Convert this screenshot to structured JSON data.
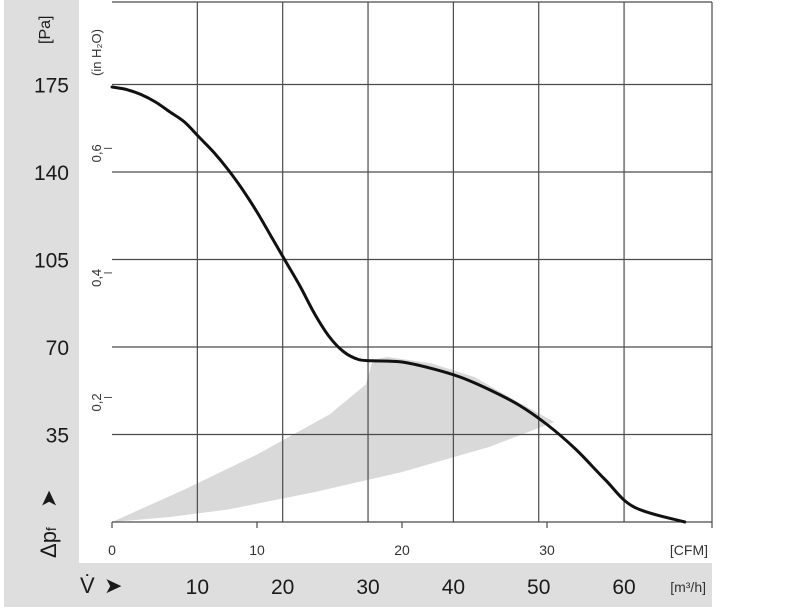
{
  "chart_data": {
    "type": "line",
    "pa_axis": {
      "unit": "[Pa]",
      "ticks": [
        35,
        70,
        105,
        140,
        175
      ],
      "range": [
        0,
        210
      ]
    },
    "inh2o_axis": {
      "unit": "(in H₂O)",
      "ticks": [
        "0,2",
        "0,4",
        "0,6"
      ],
      "tick_values": [
        0.2,
        0.4,
        0.6
      ]
    },
    "cfm_axis": {
      "unit": "[CFM]",
      "ticks": [
        0,
        10,
        20,
        30
      ],
      "range": [
        0,
        41
      ]
    },
    "m3h_axis": {
      "unit": "[m³/h]",
      "ticks": [
        10,
        20,
        30,
        40,
        50,
        60
      ]
    },
    "symbols": {
      "pressure": "Δpf",
      "flow": "V̇"
    },
    "series": [
      {
        "points": [
          [
            0,
            174
          ],
          [
            1,
            173
          ],
          [
            2,
            171
          ],
          [
            3,
            168
          ],
          [
            4,
            164
          ],
          [
            5,
            160
          ],
          [
            6,
            154
          ],
          [
            7,
            148
          ],
          [
            8,
            141
          ],
          [
            9,
            133
          ],
          [
            10,
            124
          ],
          [
            11,
            114
          ],
          [
            12,
            104
          ],
          [
            13,
            94
          ],
          [
            14,
            83
          ],
          [
            15,
            74
          ],
          [
            16,
            68
          ],
          [
            17,
            65
          ],
          [
            18,
            64.5
          ],
          [
            20,
            64
          ],
          [
            22,
            61.5
          ],
          [
            24,
            58
          ],
          [
            26,
            53
          ],
          [
            28,
            47
          ],
          [
            30,
            39
          ],
          [
            32,
            29
          ],
          [
            34,
            17
          ],
          [
            36,
            6
          ],
          [
            39.5,
            0
          ]
        ]
      }
    ],
    "operating_zone": {
      "polygon": [
        [
          0,
          0
        ],
        [
          5,
          13
        ],
        [
          10,
          27
        ],
        [
          15,
          43
        ],
        [
          17.5,
          55
        ],
        [
          18,
          65
        ],
        [
          19,
          66
        ],
        [
          22,
          63.5
        ],
        [
          25,
          58
        ],
        [
          28,
          48
        ],
        [
          30.5,
          40
        ],
        [
          26,
          30
        ],
        [
          20,
          20
        ],
        [
          14,
          12
        ],
        [
          8,
          5
        ],
        [
          4,
          2
        ],
        [
          2,
          1
        ]
      ],
      "color": "#d9d9d9"
    },
    "colors": {
      "line": "#111111",
      "grid": "#4a4a4a",
      "band": "#dedede"
    }
  }
}
